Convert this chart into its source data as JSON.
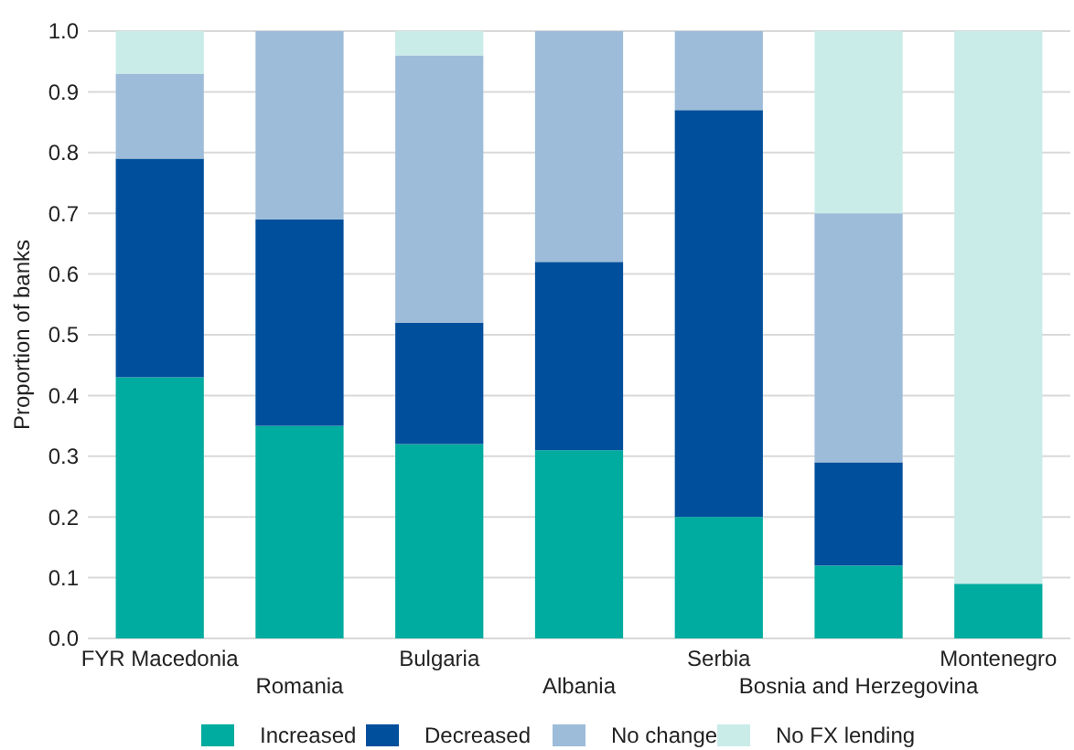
{
  "chart_data": {
    "type": "bar",
    "stacked": true,
    "ylabel": "Proportion of banks",
    "categories": [
      "FYR Macedonia",
      "Romania",
      "Bulgaria",
      "Albania",
      "Serbia",
      "Bosnia and Herzegovina",
      "Montenegro"
    ],
    "series": [
      {
        "name": "Increased",
        "color": "#00ab9f",
        "values": [
          0.43,
          0.35,
          0.32,
          0.31,
          0.2,
          0.12,
          0.09
        ]
      },
      {
        "name": "Decreased",
        "color": "#004f9c",
        "values": [
          0.36,
          0.34,
          0.2,
          0.31,
          0.67,
          0.17,
          0
        ]
      },
      {
        "name": "No change",
        "color": "#9dbcd9",
        "values": [
          0.14,
          0.31,
          0.44,
          0.38,
          0.13,
          0.41,
          0
        ]
      },
      {
        "name": "No FX lending",
        "color": "#caece8",
        "values": [
          0.07,
          0,
          0.04,
          0,
          0,
          0.3,
          0.91
        ]
      }
    ],
    "ylim": [
      0,
      1
    ],
    "yticks": [
      {
        "value": 0,
        "label": "0.0"
      },
      0.1,
      0.2,
      0.3,
      0.4,
      0.5,
      0.6,
      0.7,
      0.8,
      0.9,
      {
        "value": 1,
        "label": "1.0"
      }
    ],
    "grid": "y",
    "legend": "bottom"
  }
}
